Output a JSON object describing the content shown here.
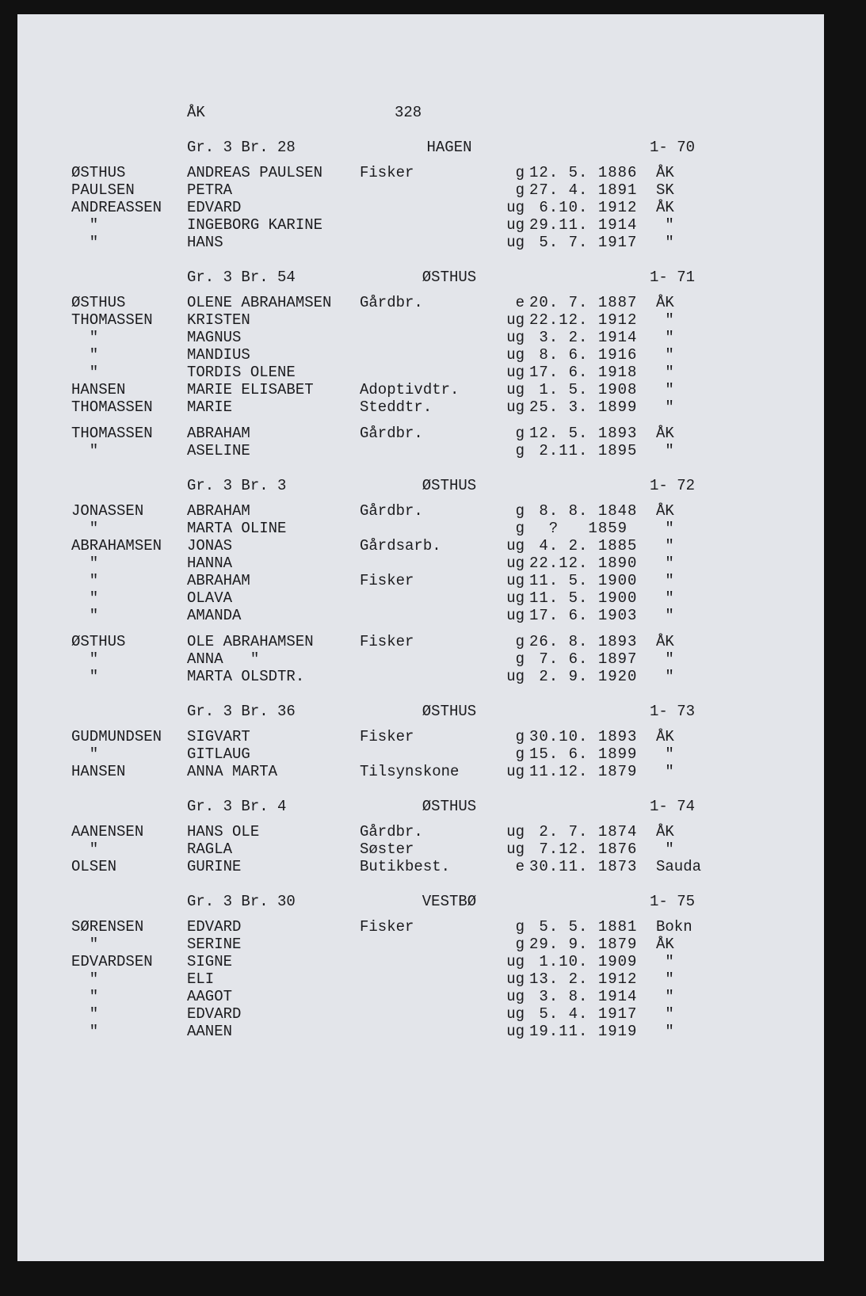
{
  "page": {
    "parish": "ÅK",
    "number": "328"
  },
  "sections": [
    {
      "gr": "Gr. 3 Br. 28",
      "farm": "HAGEN",
      "no": "1- 70",
      "groups": [
        [
          [
            "ØSTHUS",
            "ANDREAS PAULSEN",
            "Fisker",
            "g",
            "12. 5. 1886",
            "ÅK"
          ],
          [
            "PAULSEN",
            "PETRA",
            "",
            "g",
            "27. 4. 1891",
            "SK"
          ],
          [
            "ANDREASSEN",
            "EDVARD",
            "",
            "ug",
            " 6.10. 1912",
            "ÅK"
          ],
          [
            "  \"",
            "INGEBORG KARINE",
            "",
            "ug",
            "29.11. 1914",
            " \""
          ],
          [
            "  \"",
            "HANS",
            "",
            "ug",
            " 5. 7. 1917",
            " \""
          ]
        ]
      ]
    },
    {
      "gr": "Gr. 3 Br. 54",
      "farm": "ØSTHUS",
      "no": "1- 71",
      "groups": [
        [
          [
            "ØSTHUS",
            "OLENE ABRAHAMSEN",
            "Gårdbr.",
            "e",
            "20. 7. 1887",
            "ÅK"
          ],
          [
            "THOMASSEN",
            "KRISTEN",
            "",
            "ug",
            "22.12. 1912",
            " \""
          ],
          [
            "  \"",
            "MAGNUS",
            "",
            "ug",
            " 3. 2. 1914",
            " \""
          ],
          [
            "  \"",
            "MANDIUS",
            "",
            "ug",
            " 8. 6. 1916",
            " \""
          ],
          [
            "  \"",
            "TORDIS OLENE",
            "",
            "ug",
            "17. 6. 1918",
            " \""
          ],
          [
            "HANSEN",
            "MARIE ELISABET",
            "Adoptivdtr.",
            "ug",
            " 1. 5. 1908",
            " \""
          ],
          [
            "THOMASSEN",
            "MARIE",
            "Steddtr.",
            "ug",
            "25. 3. 1899",
            " \""
          ]
        ],
        [
          [
            "THOMASSEN",
            "ABRAHAM",
            "Gårdbr.",
            "g",
            "12. 5. 1893",
            "ÅK"
          ],
          [
            "  \"",
            "ASELINE",
            "",
            "g",
            " 2.11. 1895",
            " \""
          ]
        ]
      ]
    },
    {
      "gr": "Gr. 3 Br. 3",
      "farm": "ØSTHUS",
      "no": "1- 72",
      "groups": [
        [
          [
            "JONASSEN",
            "ABRAHAM",
            "Gårdbr.",
            "g",
            " 8. 8. 1848",
            "ÅK"
          ],
          [
            "  \"",
            "MARTA OLINE",
            "",
            "g",
            "  ?   1859",
            " \""
          ],
          [
            "ABRAHAMSEN",
            "JONAS",
            "Gårdsarb.",
            "ug",
            " 4. 2. 1885",
            " \""
          ],
          [
            "  \"",
            "HANNA",
            "",
            "ug",
            "22.12. 1890",
            " \""
          ],
          [
            "  \"",
            "ABRAHAM",
            "Fisker",
            "ug",
            "11. 5. 1900",
            " \""
          ],
          [
            "  \"",
            "OLAVA",
            "",
            "ug",
            "11. 5. 1900",
            " \""
          ],
          [
            "  \"",
            "AMANDA",
            "",
            "ug",
            "17. 6. 1903",
            " \""
          ]
        ],
        [
          [
            "ØSTHUS",
            "OLE ABRAHAMSEN",
            "Fisker",
            "g",
            "26. 8. 1893",
            "ÅK"
          ],
          [
            "  \"",
            "ANNA   \"",
            "",
            "g",
            " 7. 6. 1897",
            " \""
          ],
          [
            "  \"",
            "MARTA OLSDTR.",
            "",
            "ug",
            " 2. 9. 1920",
            " \""
          ]
        ]
      ]
    },
    {
      "gr": "Gr. 3 Br. 36",
      "farm": "ØSTHUS",
      "no": "1- 73",
      "groups": [
        [
          [
            "GUDMUNDSEN",
            "SIGVART",
            "Fisker",
            "g",
            "30.10. 1893",
            "ÅK"
          ],
          [
            "  \"",
            "GITLAUG",
            "",
            "g",
            "15. 6. 1899",
            " \""
          ],
          [
            "HANSEN",
            "ANNA MARTA",
            "Tilsynskone",
            "ug",
            "11.12. 1879",
            " \""
          ]
        ]
      ]
    },
    {
      "gr": "Gr. 3 Br. 4",
      "farm": "ØSTHUS",
      "no": "1- 74",
      "groups": [
        [
          [
            "AANENSEN",
            "HANS OLE",
            "Gårdbr.",
            "ug",
            " 2. 7. 1874",
            "ÅK"
          ],
          [
            "  \"",
            "RAGLA",
            "Søster",
            "ug",
            " 7.12. 1876",
            " \""
          ],
          [
            "OLSEN",
            "GURINE",
            "Butikbest.",
            "e",
            "30.11. 1873",
            "Sauda"
          ]
        ]
      ]
    },
    {
      "gr": "Gr. 3 Br. 30",
      "farm": "VESTBØ",
      "no": "1- 75",
      "groups": [
        [
          [
            "SØRENSEN",
            "EDVARD",
            "Fisker",
            "g",
            " 5. 5. 1881",
            "Bokn"
          ],
          [
            "  \"",
            "SERINE",
            "",
            "g",
            "29. 9. 1879",
            "ÅK"
          ],
          [
            "EDVARDSEN",
            "SIGNE",
            "",
            "ug",
            " 1.10. 1909",
            " \""
          ],
          [
            "  \"",
            "ELI",
            "",
            "ug",
            "13. 2. 1912",
            " \""
          ],
          [
            "  \"",
            "AAGOT",
            "",
            "ug",
            " 3. 8. 1914",
            " \""
          ],
          [
            "  \"",
            "EDVARD",
            "",
            "ug",
            " 5. 4. 1917",
            " \""
          ],
          [
            "  \"",
            "AANEN",
            "",
            "ug",
            "19.11. 1919",
            " \""
          ]
        ]
      ]
    }
  ]
}
